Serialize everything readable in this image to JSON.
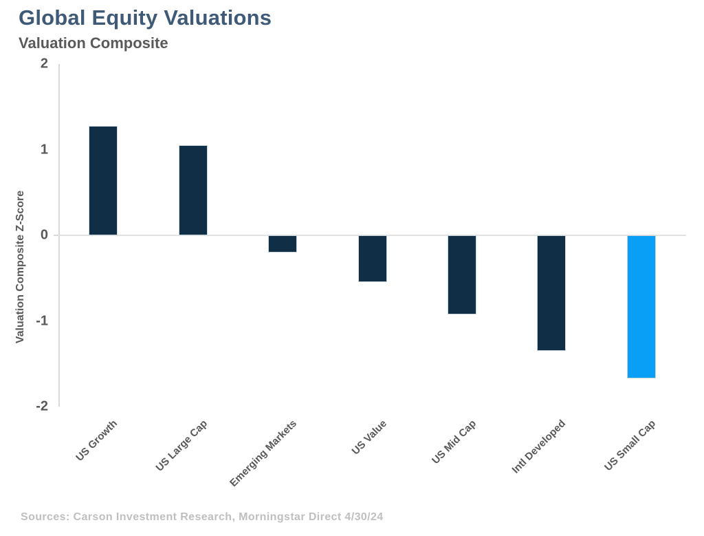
{
  "header": {
    "title": "Global Equity Valuations",
    "subtitle": "Valuation Composite"
  },
  "footer": {
    "source_note": "Sources: Carson Investment Research, Morningstar Direct 4/30/24"
  },
  "colors": {
    "title_text": "#3e5a77",
    "subtitle_text": "#595959",
    "axis_text": "#595959",
    "axis_line": "#d9d9d9",
    "bar_default": "#112e47",
    "bar_highlight": "#0a9ff7",
    "source_text": "#bfbfbf"
  },
  "chart_data": {
    "type": "bar",
    "title": "Global Equity Valuations",
    "subtitle": "Valuation Composite",
    "xlabel": "",
    "ylabel": "Valuation Composite Z-Score",
    "ylim": [
      -2,
      2
    ],
    "yticks": [
      2,
      1,
      0,
      -1,
      -2
    ],
    "grid": "zero-line-only",
    "legend": "none",
    "categories": [
      "US Growth",
      "US Large Cap",
      "Emerging Markets",
      "US Value",
      "US Mid Cap",
      "Intl Developed",
      "US Small Cap"
    ],
    "values": [
      1.28,
      1.05,
      -0.2,
      -0.55,
      -0.92,
      -1.35,
      -1.67
    ],
    "bar_colors": [
      "#112e47",
      "#112e47",
      "#112e47",
      "#112e47",
      "#112e47",
      "#112e47",
      "#0a9ff7"
    ],
    "highlighted_category": "US Small Cap"
  }
}
